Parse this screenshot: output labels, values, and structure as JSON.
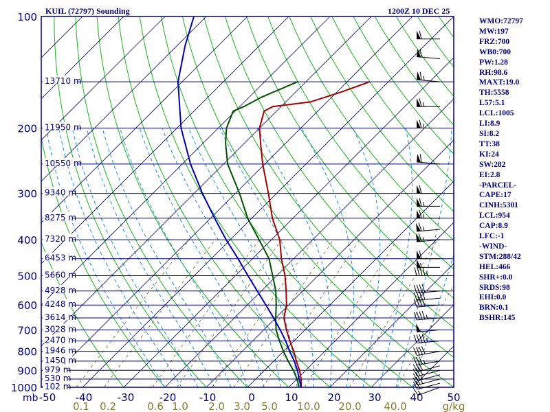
{
  "header": {
    "station": "KUIL (72797) Sounding",
    "time": "1200Z 10 DEC 25"
  },
  "indices": [
    "WMO:72797",
    "MW:197",
    "FRZ:700",
    "WB0:700",
    "PW:1.28",
    "RH:98.6",
    "MAXT:19.0",
    "TH:5558",
    "L57:5.1",
    "LCL:1005",
    "LI:8.9",
    "SI:8.2",
    "TT:38",
    "KI:24",
    "SW:282",
    "EI:2.8",
    "-PARCEL-",
    "CAPE:17",
    "CINH:5301",
    "LCL:954",
    "CAP:8.9",
    "LFC:-1",
    "-WIND-",
    "STM:288/42",
    "HEL:466",
    "SHR+:0.0",
    "SRDS:98",
    "EHI:0.0",
    "BRN:0.1",
    "BSHR:145"
  ],
  "colors": {
    "isobar": "#00007a",
    "isotherm": "#00007a",
    "dry_adiabat": "#1ab31a",
    "moist_adiabat": "#1f8fe0",
    "mixing_ratio": "#7a6a2a",
    "temperature": "#a00000",
    "dewpoint": "#005000",
    "parcel": "#0000b0",
    "wind_barb": "#000000",
    "mixing_ratio_label": "#8a7a30"
  },
  "chart_data": {
    "type": "skew-t log-p",
    "ylabel": "mb",
    "pressure_axis": [
      100,
      200,
      300,
      400,
      500,
      600,
      700,
      800,
      900,
      1000
    ],
    "ylim": [
      1000,
      100
    ],
    "xlim": [
      -50,
      50
    ],
    "temperature_ticks": [
      "-50",
      "-40",
      "-30",
      "-20",
      "-10",
      "0",
      "10",
      "20",
      "30",
      "40",
      "50"
    ],
    "mixing_ratio_ticks": [
      "0.1",
      "0.2",
      "0.6",
      "1.0",
      "2.0",
      "3.0",
      "5.0",
      "10.0",
      "20.0",
      "40.0"
    ],
    "mixing_ratio_unit": "g/kg",
    "height_labels": [
      {
        "p": 150,
        "h": "13710 m"
      },
      {
        "p": 200,
        "h": "11950 m"
      },
      {
        "p": 250,
        "h": "10550 m"
      },
      {
        "p": 300,
        "h": "9340 m"
      },
      {
        "p": 350,
        "h": "8275 m"
      },
      {
        "p": 400,
        "h": "7320 m"
      },
      {
        "p": 450,
        "h": "6453 m"
      },
      {
        "p": 500,
        "h": "5660 m"
      },
      {
        "p": 550,
        "h": "4928 m"
      },
      {
        "p": 600,
        "h": "4248 m"
      },
      {
        "p": 650,
        "h": "3614 m"
      },
      {
        "p": 700,
        "h": "3028 m"
      },
      {
        "p": 750,
        "h": "2470 m"
      },
      {
        "p": 800,
        "h": "1946 m"
      },
      {
        "p": 850,
        "h": "1450 m"
      },
      {
        "p": 900,
        "h": "979 m"
      },
      {
        "p": 950,
        "h": "530 m"
      },
      {
        "p": 1000,
        "h": "102 m"
      }
    ],
    "series": [
      {
        "key": "temperature",
        "points": [
          [
            1000,
            13.0
          ],
          [
            950,
            11.0
          ],
          [
            900,
            8.5
          ],
          [
            850,
            5.5
          ],
          [
            800,
            2.5
          ],
          [
            750,
            -1.0
          ],
          [
            700,
            -4.5
          ],
          [
            650,
            -8.0
          ],
          [
            600,
            -10.5
          ],
          [
            550,
            -14.0
          ],
          [
            500,
            -18.0
          ],
          [
            450,
            -23.0
          ],
          [
            400,
            -28.0
          ],
          [
            350,
            -35.0
          ],
          [
            300,
            -42.0
          ],
          [
            250,
            -50.5
          ],
          [
            220,
            -56.0
          ],
          [
            200,
            -60.0
          ],
          [
            180,
            -63.0
          ],
          [
            175,
            -62.0
          ],
          [
            170,
            -54.0
          ],
          [
            160,
            -49.0
          ],
          [
            150,
            -44.5
          ]
        ]
      },
      {
        "key": "dewpoint",
        "points": [
          [
            1000,
            12.5
          ],
          [
            950,
            10.0
          ],
          [
            900,
            7.0
          ],
          [
            850,
            3.5
          ],
          [
            800,
            0.0
          ],
          [
            750,
            -3.5
          ],
          [
            700,
            -7.0
          ],
          [
            650,
            -10.0
          ],
          [
            600,
            -13.0
          ],
          [
            550,
            -16.5
          ],
          [
            500,
            -21.0
          ],
          [
            450,
            -26.0
          ],
          [
            400,
            -33.0
          ],
          [
            350,
            -41.0
          ],
          [
            300,
            -49.0
          ],
          [
            250,
            -59.0
          ],
          [
            220,
            -64.5
          ],
          [
            200,
            -68.0
          ],
          [
            180,
            -70.5
          ],
          [
            175,
            -69.0
          ],
          [
            165,
            -67.0
          ],
          [
            150,
            -62.0
          ]
        ]
      },
      {
        "key": "parcel",
        "points": [
          [
            1000,
            13.0
          ],
          [
            950,
            10.5
          ],
          [
            900,
            8.0
          ],
          [
            850,
            5.0
          ],
          [
            800,
            1.5
          ],
          [
            750,
            -2.0
          ],
          [
            700,
            -6.0
          ],
          [
            650,
            -10.5
          ],
          [
            600,
            -15.5
          ],
          [
            550,
            -21.0
          ],
          [
            500,
            -27.0
          ],
          [
            450,
            -33.5
          ],
          [
            400,
            -41.0
          ],
          [
            350,
            -49.0
          ],
          [
            300,
            -58.0
          ],
          [
            250,
            -68.0
          ],
          [
            200,
            -79.0
          ],
          [
            150,
            -91.0
          ],
          [
            120,
            -98.0
          ],
          [
            100,
            -103.0
          ]
        ]
      }
    ],
    "wind": [
      {
        "p": 1000,
        "dir": 250,
        "spd": 15
      },
      {
        "p": 975,
        "dir": 255,
        "spd": 20
      },
      {
        "p": 950,
        "dir": 255,
        "spd": 25
      },
      {
        "p": 925,
        "dir": 255,
        "spd": 25
      },
      {
        "p": 900,
        "dir": 255,
        "spd": 30
      },
      {
        "p": 875,
        "dir": 255,
        "spd": 30
      },
      {
        "p": 850,
        "dir": 260,
        "spd": 35
      },
      {
        "p": 800,
        "dir": 260,
        "spd": 40
      },
      {
        "p": 750,
        "dir": 265,
        "spd": 45
      },
      {
        "p": 700,
        "dir": 265,
        "spd": 50
      },
      {
        "p": 650,
        "dir": 265,
        "spd": 45
      },
      {
        "p": 600,
        "dir": 265,
        "spd": 40
      },
      {
        "p": 575,
        "dir": 265,
        "spd": 40
      },
      {
        "p": 550,
        "dir": 265,
        "spd": 40
      },
      {
        "p": 500,
        "dir": 270,
        "spd": 45
      },
      {
        "p": 475,
        "dir": 270,
        "spd": 55
      },
      {
        "p": 450,
        "dir": 270,
        "spd": 60
      },
      {
        "p": 400,
        "dir": 265,
        "spd": 65
      },
      {
        "p": 375,
        "dir": 265,
        "spd": 65
      },
      {
        "p": 350,
        "dir": 270,
        "spd": 65
      },
      {
        "p": 325,
        "dir": 270,
        "spd": 65
      },
      {
        "p": 300,
        "dir": 270,
        "spd": 60
      },
      {
        "p": 250,
        "dir": 275,
        "spd": 60
      },
      {
        "p": 200,
        "dir": 270,
        "spd": 65
      },
      {
        "p": 175,
        "dir": 270,
        "spd": 65
      },
      {
        "p": 150,
        "dir": 275,
        "spd": 65
      },
      {
        "p": 130,
        "dir": 275,
        "spd": 60
      },
      {
        "p": 115,
        "dir": 270,
        "spd": 60
      }
    ]
  }
}
